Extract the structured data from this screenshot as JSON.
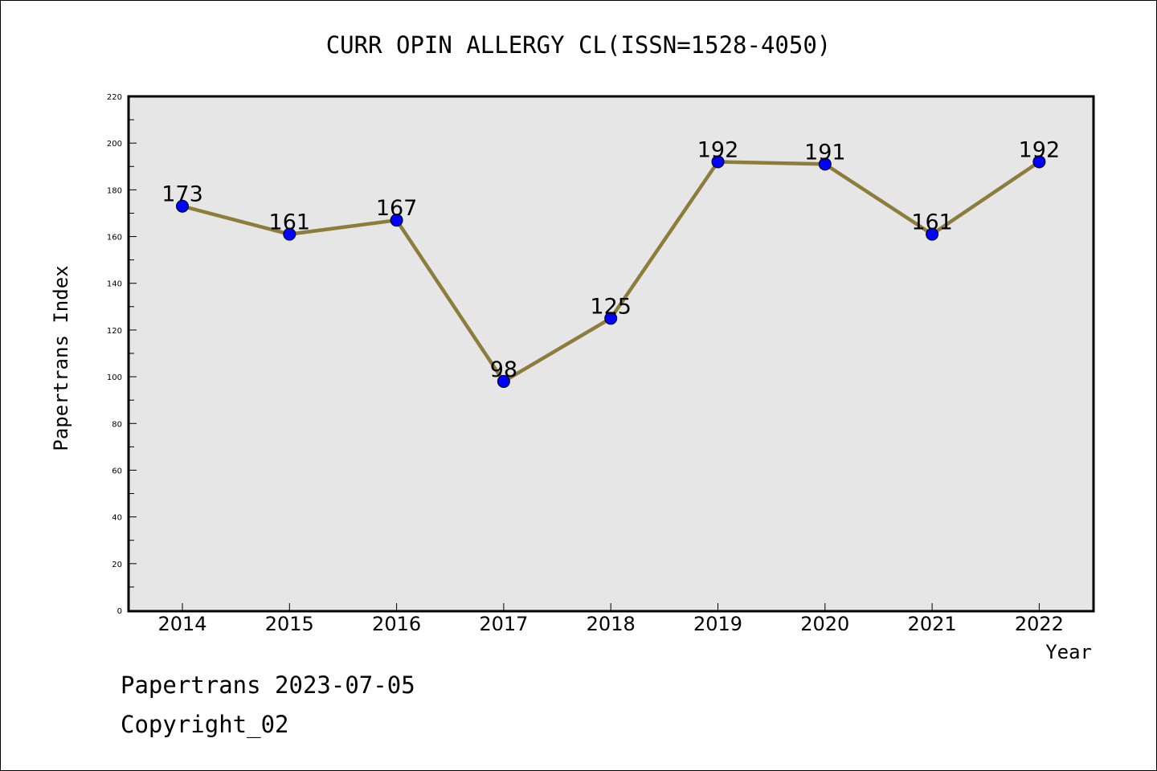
{
  "chart_data": {
    "type": "line",
    "title": "CURR OPIN ALLERGY CL(ISSN=1528-4050)",
    "xlabel": "Year",
    "ylabel": "Papertrans Index",
    "categories": [
      "2014",
      "2015",
      "2016",
      "2017",
      "2018",
      "2019",
      "2020",
      "2021",
      "2022"
    ],
    "series": [
      {
        "values": [
          173,
          161,
          167,
          98,
          125,
          192,
          191,
          161,
          192
        ],
        "data_labels": [
          "173",
          "161",
          "167",
          "98",
          "125",
          "192",
          "191",
          "161",
          "192"
        ]
      }
    ],
    "ylim": [
      0,
      220
    ],
    "yticks": [
      0,
      20,
      40,
      60,
      80,
      100,
      120,
      140,
      160,
      180,
      200,
      220
    ],
    "ytick_labels": [
      "0",
      "20",
      "40",
      "60",
      "80",
      "100",
      "120",
      "140",
      "160",
      "180",
      "200",
      "220"
    ],
    "grid": false,
    "colors": {
      "line": "#8c7d3c",
      "marker": "#0000ff",
      "plot_background": "#e6e6e6"
    }
  },
  "footer": {
    "date_text": "Papertrans 2023-07-05",
    "copyright_text": "Copyright_02"
  }
}
